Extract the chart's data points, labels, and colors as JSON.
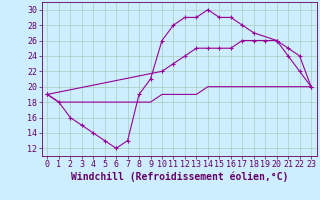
{
  "xlabel": "Windchill (Refroidissement éolien,°C)",
  "background_color": "#cceeff",
  "grid_color": "#aaccbb",
  "line_color": "#990099",
  "xlim": [
    -0.5,
    23.5
  ],
  "ylim": [
    11,
    31
  ],
  "yticks": [
    12,
    14,
    16,
    18,
    20,
    22,
    24,
    26,
    28,
    30
  ],
  "xticks": [
    0,
    1,
    2,
    3,
    4,
    5,
    6,
    7,
    8,
    9,
    10,
    11,
    12,
    13,
    14,
    15,
    16,
    17,
    18,
    19,
    20,
    21,
    22,
    23
  ],
  "line1_x": [
    0,
    1,
    2,
    3,
    4,
    5,
    6,
    7,
    8,
    9,
    10,
    11,
    12,
    13,
    14,
    15,
    16,
    17,
    18,
    20,
    21,
    22,
    23
  ],
  "line1_y": [
    19,
    18,
    16,
    15,
    14,
    13,
    12,
    13,
    19,
    21,
    26,
    28,
    29,
    29,
    30,
    29,
    29,
    28,
    27,
    26,
    24,
    22,
    20
  ],
  "line2_x": [
    0,
    10,
    11,
    12,
    13,
    14,
    15,
    16,
    17,
    18,
    19,
    20,
    21,
    22,
    23
  ],
  "line2_y": [
    19,
    22,
    23,
    24,
    25,
    25,
    25,
    25,
    26,
    26,
    26,
    26,
    25,
    24,
    20
  ],
  "line3_x": [
    0,
    1,
    2,
    3,
    4,
    5,
    6,
    7,
    8,
    9,
    10,
    11,
    12,
    13,
    14,
    15,
    16,
    17,
    18,
    19,
    20,
    21,
    22,
    23
  ],
  "line3_y": [
    19,
    18,
    18,
    18,
    18,
    18,
    18,
    18,
    18,
    18,
    19,
    19,
    19,
    19,
    20,
    20,
    20,
    20,
    20,
    20,
    20,
    20,
    20,
    20
  ],
  "font_color": "#660066",
  "tick_fontsize": 6,
  "label_fontsize": 7
}
